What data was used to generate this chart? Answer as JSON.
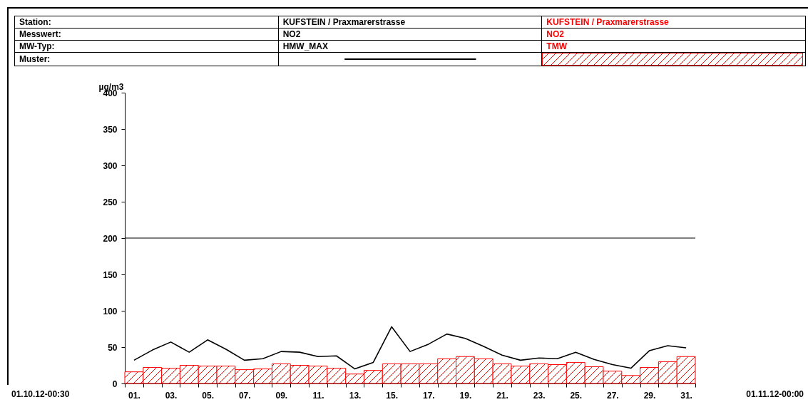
{
  "chart_data": {
    "type": "bar",
    "ylabel": "µg/m3",
    "categories": [
      "01.",
      null,
      "03.",
      null,
      "05.",
      null,
      "07.",
      null,
      "09.",
      null,
      "11.",
      null,
      "13.",
      null,
      "15.",
      null,
      "17.",
      null,
      "19.",
      null,
      "21.",
      null,
      "23.",
      null,
      "25.",
      null,
      "27.",
      null,
      "29.",
      null,
      "31."
    ],
    "series": [
      {
        "name": "HMW_MAX",
        "type": "line",
        "color": "#000000",
        "values": [
          32,
          46,
          57,
          43,
          60,
          47,
          32,
          34,
          44,
          43,
          37,
          38,
          20,
          29,
          78,
          44,
          54,
          68,
          62,
          51,
          39,
          32,
          35,
          34,
          43,
          33,
          26,
          21,
          45,
          52,
          49
        ]
      },
      {
        "name": "TMW",
        "color": "#ff0000",
        "values": [
          16,
          22,
          21,
          25,
          24,
          24,
          19,
          20,
          27,
          25,
          24,
          21,
          13,
          18,
          27,
          27,
          27,
          34,
          37,
          34,
          27,
          24,
          27,
          26,
          29,
          23,
          17,
          11,
          22,
          30,
          37
        ]
      }
    ],
    "ylim": [
      0,
      400
    ],
    "yticks": [
      0,
      50,
      100,
      150,
      200,
      250,
      300,
      350,
      400
    ],
    "grid": false,
    "legend": "top",
    "ref_lines": [
      {
        "axis": "y",
        "value": 200,
        "color": "#000000"
      }
    ],
    "annotations": [
      "Station:",
      "Messwert:",
      "MW-Typ:",
      "Muster:",
      "KUFSTEIN / Praxmarerstrasse",
      "NO2",
      "KUFSTEIN / Praxmarerstrasse",
      "NO2",
      "01.10.12-00:30",
      "01.11.12-00:00"
    ]
  }
}
